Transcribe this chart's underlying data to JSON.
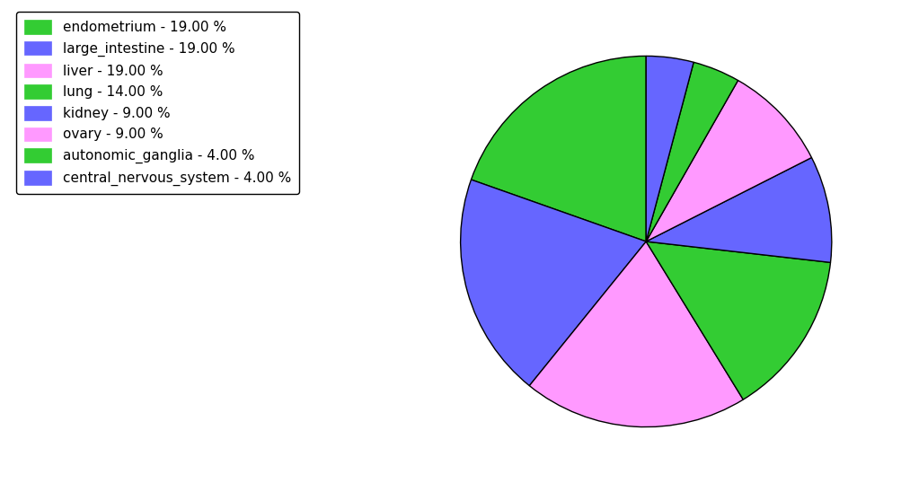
{
  "labels": [
    "endometrium",
    "large_intestine",
    "liver",
    "lung",
    "kidney",
    "ovary",
    "autonomic_ganglia",
    "central_nervous_system"
  ],
  "values": [
    19,
    19,
    19,
    14,
    9,
    9,
    4,
    4
  ],
  "colors": [
    "#33cc33",
    "#6666ff",
    "#ff99ff",
    "#33cc33",
    "#6666ff",
    "#ff99ff",
    "#33cc33",
    "#6666ff"
  ],
  "legend_labels": [
    "endometrium - 19.00 %",
    "large_intestine - 19.00 %",
    "liver - 19.00 %",
    "lung - 14.00 %",
    "kidney - 9.00 %",
    "ovary - 9.00 %",
    "autonomic_ganglia - 4.00 %",
    "central_nervous_system - 4.00 %"
  ],
  "legend_colors": [
    "#33cc33",
    "#6666ff",
    "#ff99ff",
    "#33cc33",
    "#6666ff",
    "#ff99ff",
    "#33cc33",
    "#6666ff"
  ],
  "startangle": 90,
  "figsize": [
    10.13,
    5.38
  ],
  "background_color": "#ffffff"
}
